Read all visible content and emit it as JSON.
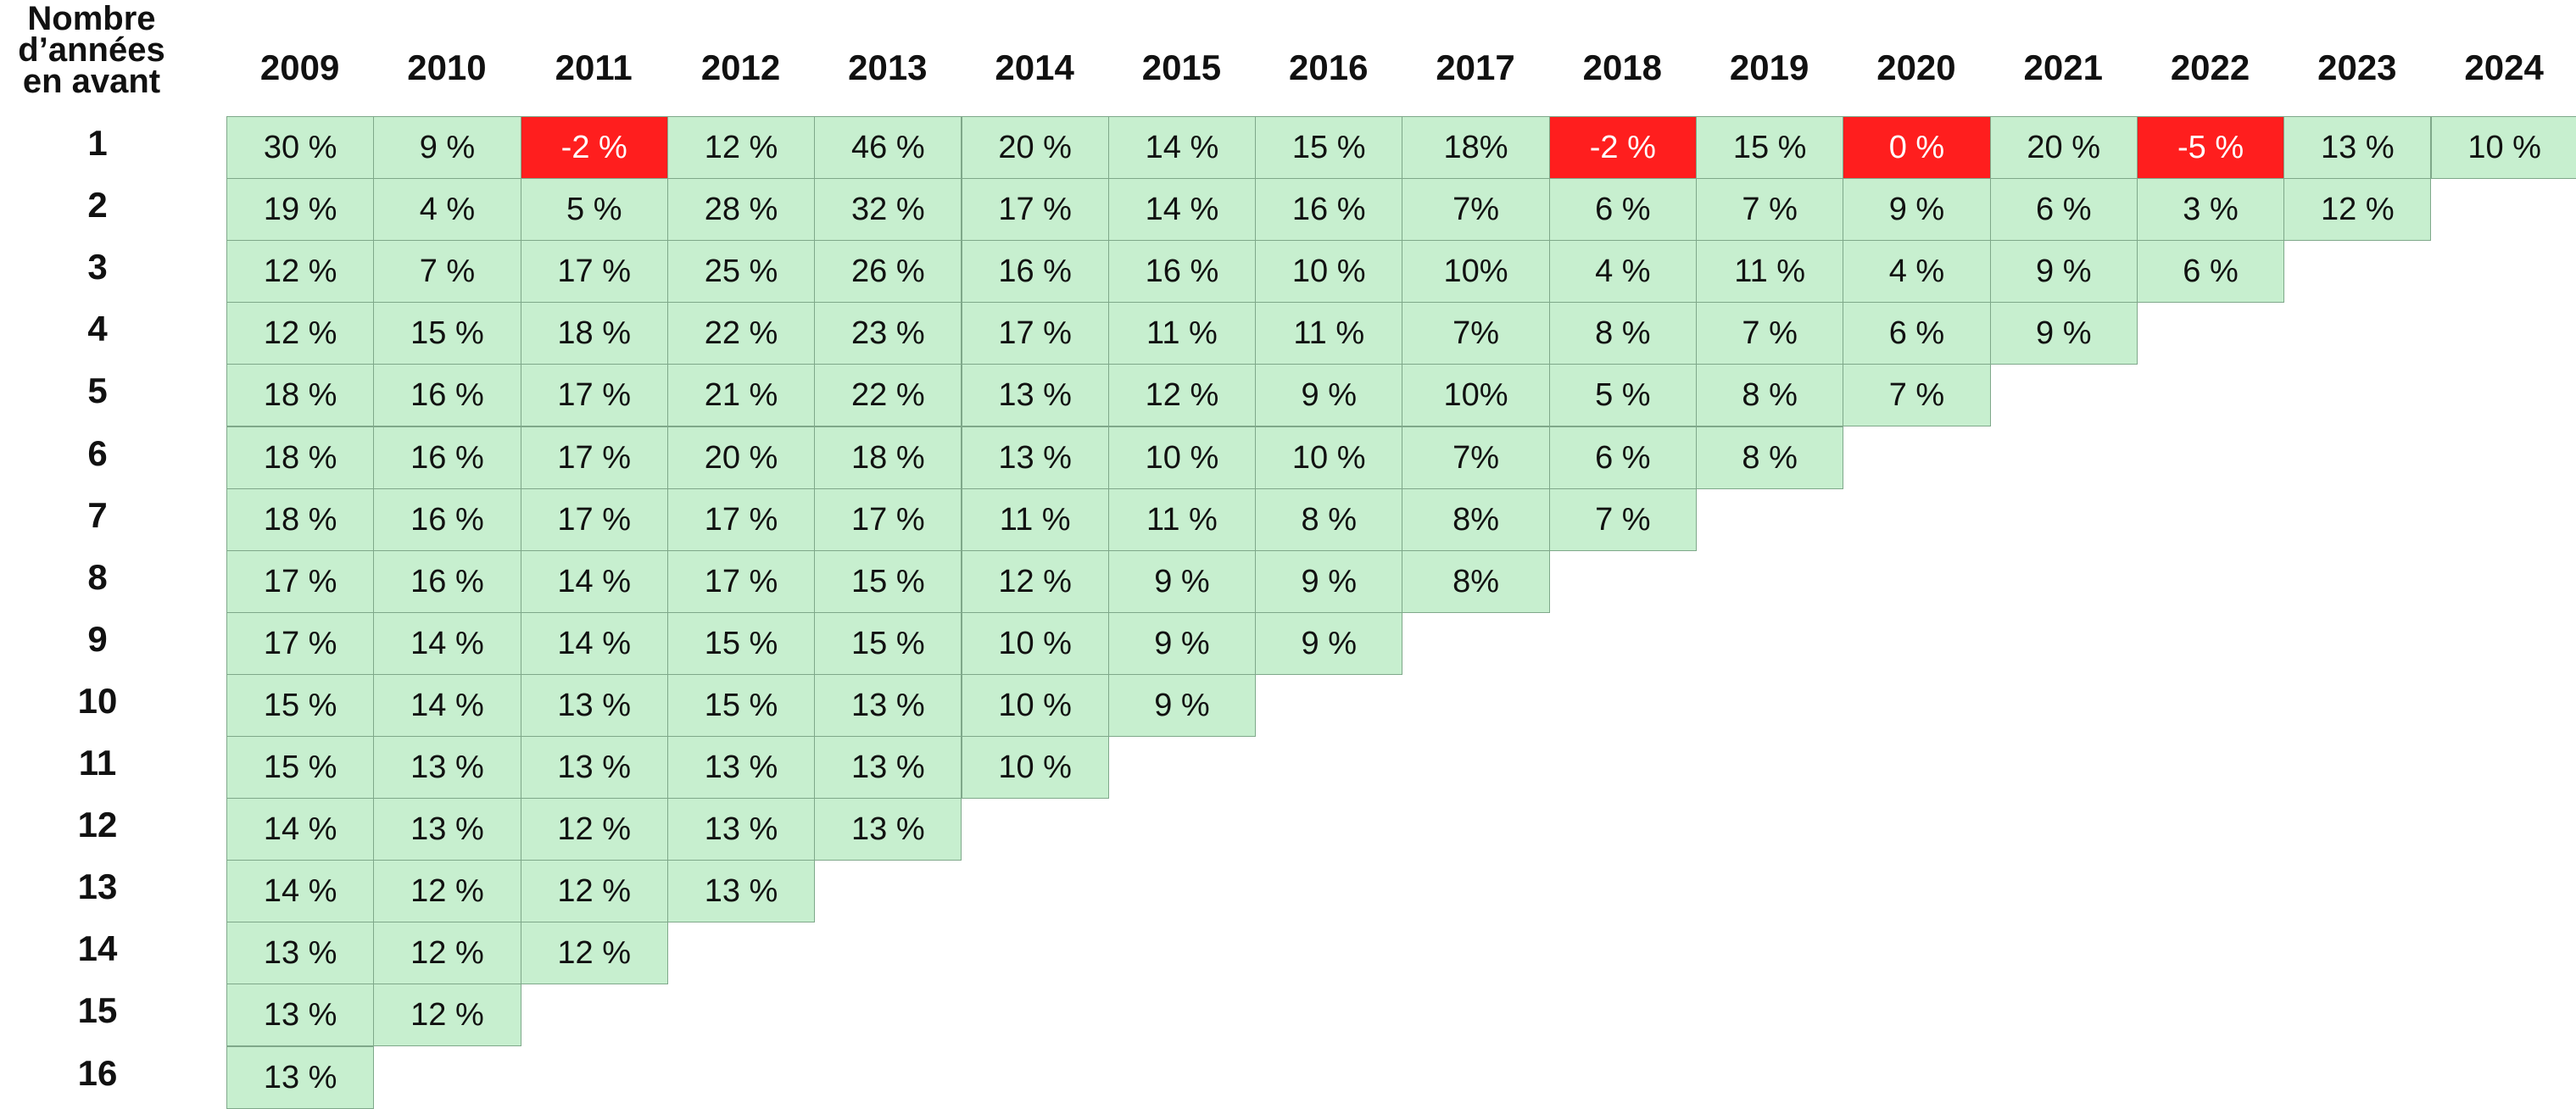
{
  "header": {
    "corner_lines": [
      "Nombre",
      "d’années",
      "en avant"
    ]
  },
  "colors": {
    "cell_background": "#c7efcf",
    "cell_border": "#7fa88a",
    "negative_highlight": "#ff1e1e",
    "text": "#111111"
  },
  "chart_data": {
    "type": "table",
    "years": [
      "2009",
      "2010",
      "2011",
      "2012",
      "2013",
      "2014",
      "2015",
      "2016",
      "2017",
      "2018",
      "2019",
      "2020",
      "2021",
      "2022",
      "2023",
      "2024"
    ],
    "row_labels": [
      "1",
      "2",
      "3",
      "4",
      "5",
      "6",
      "7",
      "8",
      "9",
      "10",
      "11",
      "12",
      "13",
      "14",
      "15",
      "16"
    ],
    "columns": [
      [
        "30 %",
        "19 %",
        "12 %",
        "12 %",
        "18 %",
        "18 %",
        "18 %",
        "17 %",
        "17 %",
        "15 %",
        "15 %",
        "14 %",
        "14 %",
        "13 %",
        "13 %",
        "13 %"
      ],
      [
        "9 %",
        "4 %",
        "7 %",
        "15 %",
        "16 %",
        "16 %",
        "16 %",
        "16 %",
        "14 %",
        "14 %",
        "13 %",
        "13 %",
        "12 %",
        "12 %",
        "12 %"
      ],
      [
        "-2 %",
        "5 %",
        "17 %",
        "18 %",
        "17 %",
        "17 %",
        "17 %",
        "14 %",
        "14 %",
        "13 %",
        "13 %",
        "12 %",
        "12 %",
        "12 %"
      ],
      [
        "12 %",
        "28 %",
        "25 %",
        "22 %",
        "21 %",
        "20 %",
        "17 %",
        "17 %",
        "15 %",
        "15 %",
        "13 %",
        "13 %",
        "13 %"
      ],
      [
        "46 %",
        "32 %",
        "26 %",
        "23 %",
        "22 %",
        "18 %",
        "17 %",
        "15 %",
        "15 %",
        "13 %",
        "13 %",
        "13 %"
      ],
      [
        "20 %",
        "17 %",
        "16 %",
        "17 %",
        "13 %",
        "13 %",
        "11 %",
        "12 %",
        "10 %",
        "10 %",
        "10 %"
      ],
      [
        "14 %",
        "14 %",
        "16 %",
        "11 %",
        "12 %",
        "10 %",
        "11 %",
        "9 %",
        "9 %",
        "9 %"
      ],
      [
        "15 %",
        "16 %",
        "10 %",
        "11 %",
        "9 %",
        "10 %",
        "8 %",
        "9 %",
        "9 %"
      ],
      [
        "18%",
        "7%",
        "10%",
        "7%",
        "10%",
        "7%",
        "8%",
        "8%"
      ],
      [
        "-2 %",
        "6 %",
        "4 %",
        "8 %",
        "5 %",
        "6 %",
        "7 %"
      ],
      [
        "15 %",
        "7 %",
        "11 %",
        "7 %",
        "8 %",
        "8 %"
      ],
      [
        "0 %",
        "9 %",
        "4 %",
        "6 %",
        "7 %"
      ],
      [
        "20 %",
        "6 %",
        "9 %",
        "9 %"
      ],
      [
        "-5 %",
        "3 %",
        "6 %"
      ],
      [
        "13 %",
        "12 %"
      ],
      [
        "10 %"
      ]
    ]
  }
}
